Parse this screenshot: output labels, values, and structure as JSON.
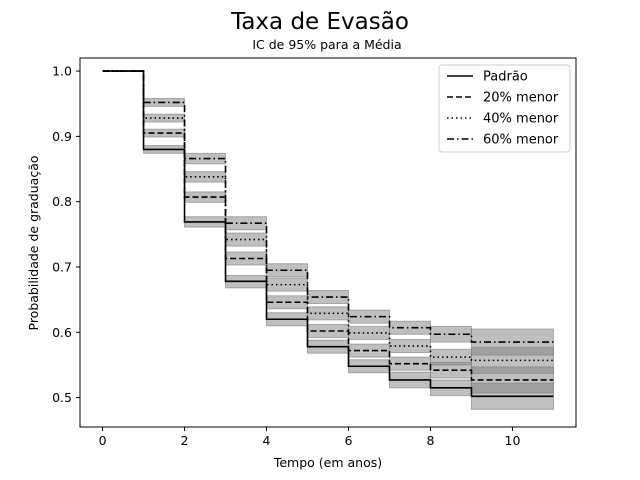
{
  "chart_data": {
    "type": "line",
    "title": "Taxa de Evasão",
    "subtitle": "IC de 95% para a Média",
    "xlabel": "Tempo (em anos)",
    "ylabel": "Probabilidade de graduação",
    "xlim": [
      -0.55,
      11.55
    ],
    "ylim": [
      0.455,
      1.02
    ],
    "x_ticks": [
      0,
      2,
      4,
      6,
      8,
      10
    ],
    "y_ticks": [
      0.5,
      0.6,
      0.7,
      0.8,
      0.9,
      1.0
    ],
    "x_tick_labels": [
      "0",
      "2",
      "4",
      "6",
      "8",
      "10"
    ],
    "y_tick_labels": [
      "0.5",
      "0.6",
      "0.7",
      "0.8",
      "0.9",
      "1.0"
    ],
    "grid": false,
    "step": "post",
    "legend_position": "top-right",
    "x": [
      0,
      1,
      2,
      3,
      4,
      5,
      6,
      7,
      8,
      9,
      11
    ],
    "series": [
      {
        "name": "Padrão",
        "style": "solid",
        "values": [
          1.0,
          0.88,
          0.769,
          0.678,
          0.62,
          0.578,
          0.548,
          0.527,
          0.515,
          0.502,
          0.502
        ],
        "ci_lower": [
          1.0,
          0.874,
          0.761,
          0.668,
          0.61,
          0.568,
          0.538,
          0.515,
          0.503,
          0.482,
          0.482
        ],
        "ci_upper": [
          1.0,
          0.886,
          0.777,
          0.687,
          0.63,
          0.588,
          0.558,
          0.539,
          0.527,
          0.522,
          0.522
        ]
      },
      {
        "name": "20% menor",
        "style": "dashed",
        "values": [
          1.0,
          0.905,
          0.807,
          0.713,
          0.646,
          0.602,
          0.572,
          0.552,
          0.542,
          0.527,
          0.527
        ],
        "ci_lower": [
          1.0,
          0.899,
          0.799,
          0.703,
          0.636,
          0.592,
          0.562,
          0.542,
          0.53,
          0.507,
          0.507
        ],
        "ci_upper": [
          1.0,
          0.911,
          0.815,
          0.723,
          0.656,
          0.612,
          0.582,
          0.562,
          0.554,
          0.547,
          0.547
        ]
      },
      {
        "name": "40% menor",
        "style": "dotted",
        "values": [
          1.0,
          0.928,
          0.838,
          0.742,
          0.673,
          0.629,
          0.599,
          0.579,
          0.562,
          0.557,
          0.557
        ],
        "ci_lower": [
          1.0,
          0.922,
          0.83,
          0.732,
          0.663,
          0.619,
          0.589,
          0.569,
          0.55,
          0.537,
          0.537
        ],
        "ci_upper": [
          1.0,
          0.934,
          0.846,
          0.752,
          0.683,
          0.639,
          0.609,
          0.589,
          0.574,
          0.577,
          0.577
        ]
      },
      {
        "name": "60% menor",
        "style": "dashdot",
        "values": [
          1.0,
          0.952,
          0.866,
          0.767,
          0.695,
          0.654,
          0.624,
          0.607,
          0.597,
          0.585,
          0.585
        ],
        "ci_lower": [
          1.0,
          0.946,
          0.858,
          0.757,
          0.685,
          0.644,
          0.614,
          0.597,
          0.585,
          0.565,
          0.565
        ],
        "ci_upper": [
          1.0,
          0.958,
          0.874,
          0.777,
          0.705,
          0.664,
          0.634,
          0.617,
          0.609,
          0.605,
          0.605
        ]
      }
    ],
    "colors": {
      "line": "#000000",
      "ci_band": "#808080",
      "axes": "#000000",
      "legend_border": "#cccccc"
    }
  }
}
